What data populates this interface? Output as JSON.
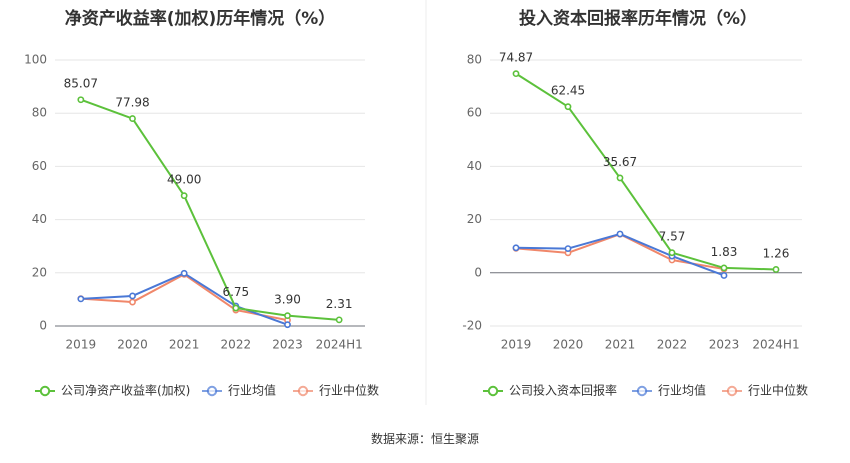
{
  "chart_data": [
    {
      "type": "line",
      "title": "净资产收益率(加权)历年情况（%）",
      "categories": [
        "2019",
        "2020",
        "2021",
        "2022",
        "2023",
        "2024H1"
      ],
      "ylim": [
        0,
        100
      ],
      "yticks": [
        0,
        20,
        40,
        60,
        80,
        100
      ],
      "grid": true,
      "legend_position": "bottom",
      "series": [
        {
          "name": "公司净资产收益率(加权)",
          "color": "#5cc13b",
          "labeled": true,
          "values": [
            85.07,
            77.98,
            49.0,
            6.75,
            3.9,
            2.31
          ],
          "labels": [
            "85.07",
            "77.98",
            "49.00",
            "6.75",
            "3.90",
            "2.31"
          ]
        },
        {
          "name": "行业均值",
          "color": "#4a78d6",
          "labeled": false,
          "values": [
            10.2,
            11.3,
            19.8,
            7.5,
            0.5,
            null
          ]
        },
        {
          "name": "行业中位数",
          "color": "#f0876a",
          "labeled": false,
          "values": [
            10.3,
            9.0,
            19.4,
            6.0,
            2.2,
            null
          ]
        }
      ]
    },
    {
      "type": "line",
      "title": "投入资本回报率历年情况（%）",
      "categories": [
        "2019",
        "2020",
        "2021",
        "2022",
        "2023",
        "2024H1"
      ],
      "ylim": [
        -20,
        80
      ],
      "yticks": [
        -20,
        0,
        20,
        40,
        60,
        80
      ],
      "grid": true,
      "legend_position": "bottom",
      "series": [
        {
          "name": "公司投入资本回报率",
          "color": "#5cc13b",
          "labeled": true,
          "values": [
            74.87,
            62.45,
            35.67,
            7.57,
            1.83,
            1.26
          ],
          "labels": [
            "74.87",
            "62.45",
            "35.67",
            "7.57",
            "1.83",
            "1.26"
          ]
        },
        {
          "name": "行业均值",
          "color": "#4a78d6",
          "labeled": false,
          "values": [
            9.4,
            9.1,
            14.6,
            6.3,
            -1.0,
            null
          ]
        },
        {
          "name": "行业中位数",
          "color": "#f0876a",
          "labeled": false,
          "values": [
            9.2,
            7.5,
            14.5,
            4.8,
            1.4,
            null
          ]
        }
      ]
    }
  ],
  "source": "数据来源：恒生聚源"
}
